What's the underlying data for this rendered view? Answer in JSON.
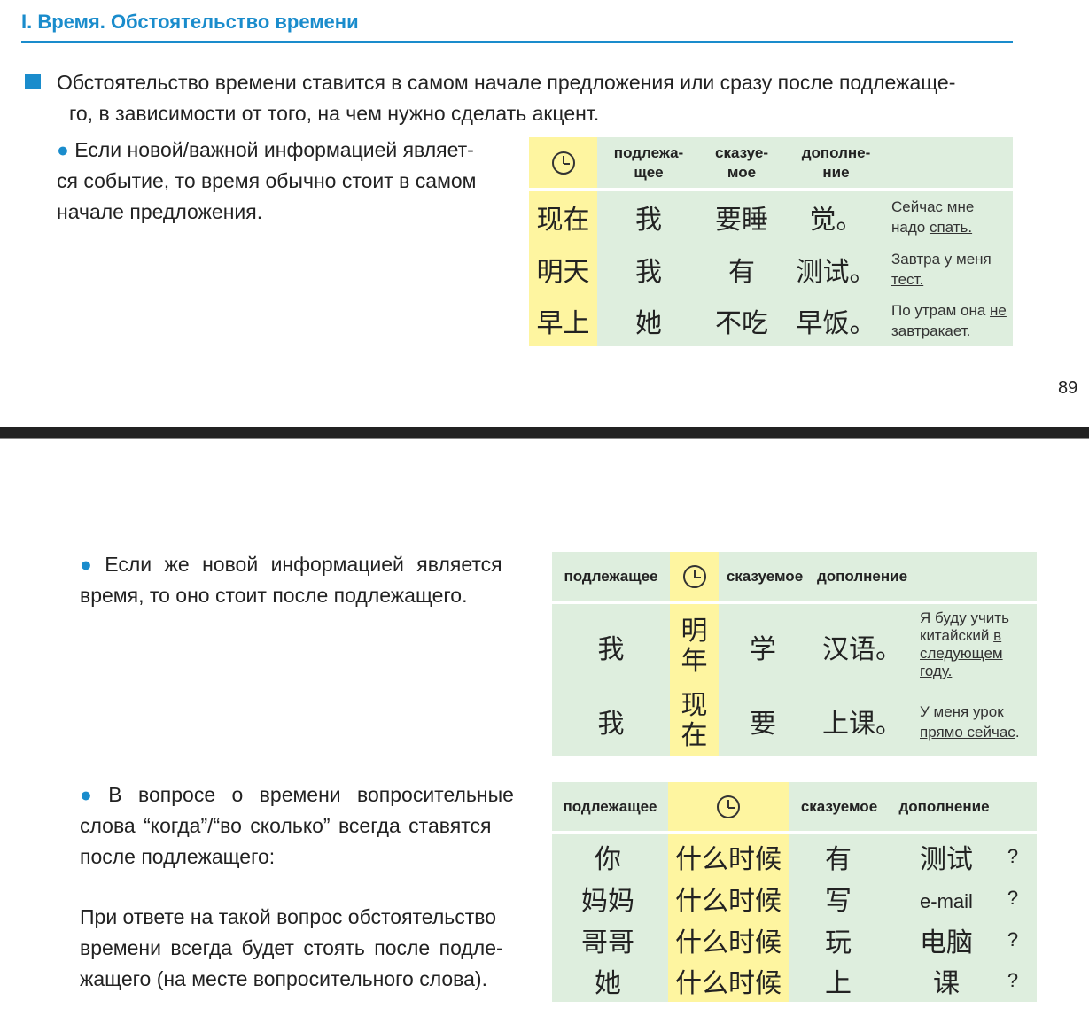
{
  "section_title": "I. Время. Обстоятельство времени",
  "intro": {
    "line1": "Обстоятельство времени ставится в самом начале предложения или сразу после подлежаще-",
    "line2": "го, в зависимости от того, на чем нужно сделать акцент."
  },
  "bullet_symbol": "●",
  "para1": {
    "line1": "Если новой/важной информацией являет-",
    "line2": "ся событие, то время обычно стоит в самом",
    "line3": "начале предложения."
  },
  "table1": {
    "headers": {
      "subject": "подлежа-\nщее",
      "predicate": "сказуе-\nмое",
      "object": "дополне-\nние"
    },
    "rows": [
      {
        "time": "现在",
        "subject": "我",
        "predicate": "要睡",
        "object": "觉。",
        "note_plain": "Сейчас мне надо ",
        "note_underlined": "спать.",
        "note_after": ""
      },
      {
        "time": "明天",
        "subject": "我",
        "predicate": "有",
        "object": "测试。",
        "note_plain": "Завтра у меня ",
        "note_underlined": "тест.",
        "note_after": ""
      },
      {
        "time": "早上",
        "subject": "她",
        "predicate": "不吃",
        "object": "早饭。",
        "note_plain": "По утрам она ",
        "note_underlined": "не завтракает.",
        "note_after": ""
      }
    ]
  },
  "page_number": "89",
  "para2": {
    "line1": "Если же новой информацией является",
    "line2": "время, то оно стоит после подлежащего."
  },
  "table2": {
    "headers": {
      "subject": "подлежащее",
      "predicate": "сказуемое",
      "object": "дополнение"
    },
    "rows": [
      {
        "subject": "我",
        "time": "明\n年",
        "predicate": "学",
        "object": "汉语。",
        "note_plain": "Я буду учить китайский ",
        "note_underlined": "в следующем году.",
        "note_after": ""
      },
      {
        "subject": "我",
        "time": "现\n在",
        "predicate": "要",
        "object": "上课。",
        "note_plain": "У меня урок ",
        "note_underlined": "прямо сейчас",
        "note_after": "."
      }
    ]
  },
  "para3": {
    "line1": "В вопросе о времени вопросительные",
    "line2": "слова “когда”/“во сколько” всегда ставятся",
    "line3": "после подлежащего:"
  },
  "para4": {
    "line1": "При ответе на такой вопрос обстоятельство",
    "line2": "времени всегда будет стоять после подле-",
    "line3": "жащего (на месте вопросительного слова)."
  },
  "table3": {
    "headers": {
      "subject": "подлежащее",
      "predicate": "сказуемое",
      "object": "дополнение"
    },
    "rows": [
      {
        "subject": "你",
        "time": "什么时候",
        "predicate": "有",
        "object": "测试",
        "q": "?"
      },
      {
        "subject": "妈妈",
        "time": "什么时候",
        "predicate": "写",
        "object": "e-mail",
        "q": "?"
      },
      {
        "subject": "哥哥",
        "time": "什么时候",
        "predicate": "玩",
        "object": "电脑",
        "q": "?"
      },
      {
        "subject": "她",
        "time": "什么时候",
        "predicate": "上",
        "object": "课",
        "q": "?"
      }
    ]
  },
  "colors": {
    "accent": "#1a8ccc",
    "green": "#deeede",
    "yellow": "#fef5a0"
  },
  "icons": {
    "time_column": "clock-icon"
  }
}
